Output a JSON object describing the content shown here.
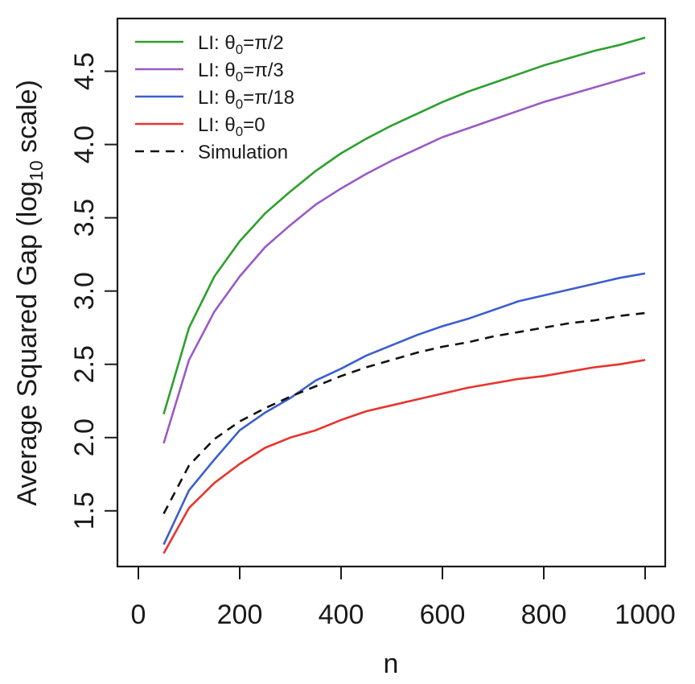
{
  "chart_data": {
    "type": "line",
    "xlabel": "n",
    "ylabel": {
      "prefix": "Average Squared Gap (log",
      "subscript": "10",
      "suffix": " scale)"
    },
    "xlim": [
      0,
      1000
    ],
    "ylim": [
      1.12,
      4.86
    ],
    "x_ticks": [
      0,
      200,
      400,
      600,
      800,
      1000
    ],
    "y_ticks": [
      1.5,
      2.0,
      2.5,
      3.0,
      3.5,
      4.0,
      4.5
    ],
    "y_tick_labels": [
      "1.5",
      "2.0",
      "2.5",
      "3.0",
      "3.5",
      "4.0",
      "4.5"
    ],
    "legend_position": "top-left",
    "grid": false,
    "x": [
      50,
      100,
      150,
      200,
      250,
      300,
      350,
      400,
      450,
      500,
      550,
      600,
      650,
      700,
      750,
      800,
      850,
      900,
      950,
      1000
    ],
    "series": [
      {
        "name": "LI: θ0=π/2",
        "legend": {
          "pre": "LI: θ",
          "sub": "0",
          "post": "=π/2"
        },
        "color": "#2ca02c",
        "dash": "solid",
        "values": [
          2.16,
          2.75,
          3.1,
          3.34,
          3.53,
          3.68,
          3.82,
          3.94,
          4.04,
          4.13,
          4.21,
          4.29,
          4.36,
          4.42,
          4.48,
          4.54,
          4.59,
          4.64,
          4.68,
          4.73
        ]
      },
      {
        "name": "LI: θ0=π/3",
        "legend": {
          "pre": "LI: θ",
          "sub": "0",
          "post": "=π/3"
        },
        "color": "#9b59c6",
        "dash": "solid",
        "values": [
          1.96,
          2.53,
          2.86,
          3.1,
          3.3,
          3.45,
          3.59,
          3.7,
          3.8,
          3.89,
          3.97,
          4.05,
          4.11,
          4.17,
          4.23,
          4.29,
          4.34,
          4.39,
          4.44,
          4.49
        ]
      },
      {
        "name": "LI: θ0=π/18",
        "legend": {
          "pre": "LI: θ",
          "sub": "0",
          "post": "=π/18"
        },
        "color": "#3a5fcd",
        "dash": "solid",
        "values": [
          1.27,
          1.64,
          1.85,
          2.05,
          2.17,
          2.27,
          2.39,
          2.47,
          2.56,
          2.63,
          2.7,
          2.76,
          2.81,
          2.87,
          2.93,
          2.97,
          3.01,
          3.05,
          3.09,
          3.12
        ]
      },
      {
        "name": "LI: θ0=0",
        "legend": {
          "pre": "LI: θ",
          "sub": "0",
          "post": "=0"
        },
        "color": "#e8342c",
        "dash": "solid",
        "values": [
          1.21,
          1.52,
          1.69,
          1.82,
          1.93,
          2.0,
          2.05,
          2.12,
          2.18,
          2.22,
          2.26,
          2.3,
          2.34,
          2.37,
          2.4,
          2.42,
          2.45,
          2.48,
          2.5,
          2.53
        ]
      },
      {
        "name": "Simulation",
        "legend": {
          "pre": "Simulation",
          "sub": "",
          "post": ""
        },
        "color": "#111111",
        "dash": "dashed",
        "values": [
          1.48,
          1.81,
          1.99,
          2.11,
          2.2,
          2.28,
          2.35,
          2.42,
          2.48,
          2.53,
          2.58,
          2.62,
          2.65,
          2.69,
          2.72,
          2.75,
          2.78,
          2.8,
          2.83,
          2.85
        ]
      }
    ]
  }
}
